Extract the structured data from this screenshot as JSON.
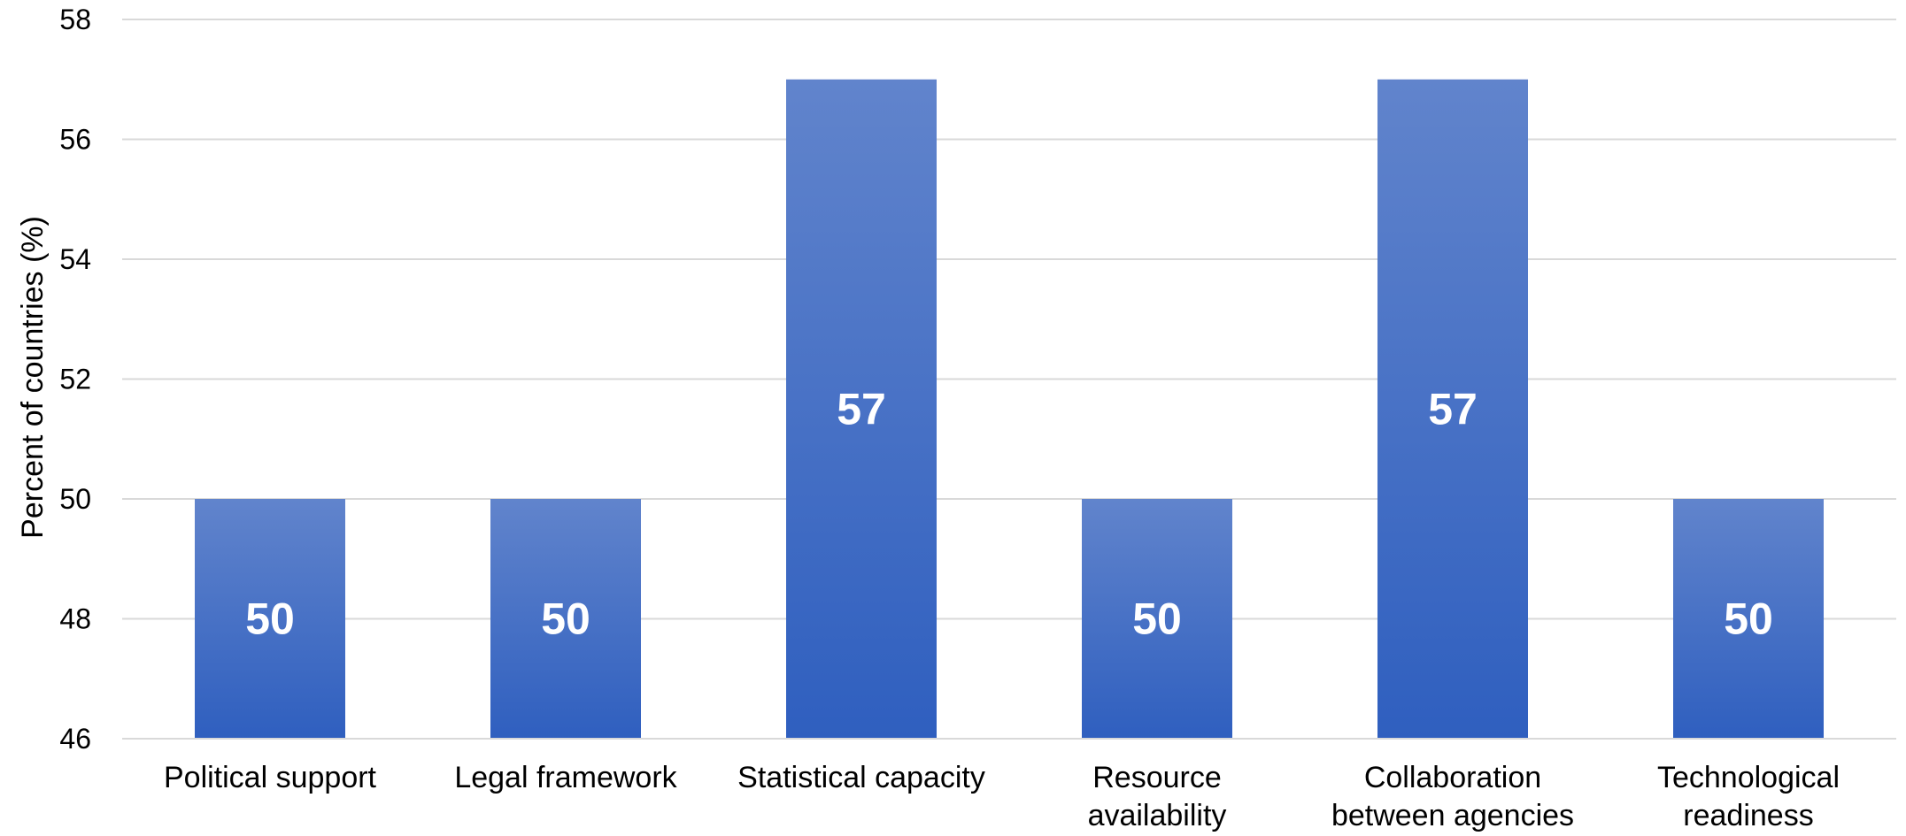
{
  "chart_data": {
    "type": "bar",
    "categories": [
      "Political support",
      "Legal framework",
      "Statistical capacity",
      "Resource availability",
      "Collaboration between agencies",
      "Technological readiness"
    ],
    "category_label_lines": [
      [
        "Political support"
      ],
      [
        "Legal framework"
      ],
      [
        "Statistical capacity"
      ],
      [
        "Resource",
        "availability"
      ],
      [
        "Collaboration",
        "between agencies"
      ],
      [
        "Technological",
        "readiness"
      ]
    ],
    "values": [
      50,
      50,
      57,
      50,
      57,
      50
    ],
    "data_labels": [
      "50",
      "50",
      "57",
      "50",
      "57",
      "50"
    ],
    "title": "",
    "xlabel": "",
    "ylabel": "Percent of countries (%)",
    "ylim": [
      46,
      58
    ],
    "yticks": [
      46,
      48,
      50,
      52,
      54,
      56,
      58
    ],
    "grid": true,
    "legend": "none",
    "colors": {
      "bar_top": "#6184cc",
      "bar_bottom": "#2f5fbf",
      "grid": "#d9d9d9",
      "axis": "#d9d9d9",
      "text": "#000000",
      "data_label": "#ffffff"
    }
  }
}
